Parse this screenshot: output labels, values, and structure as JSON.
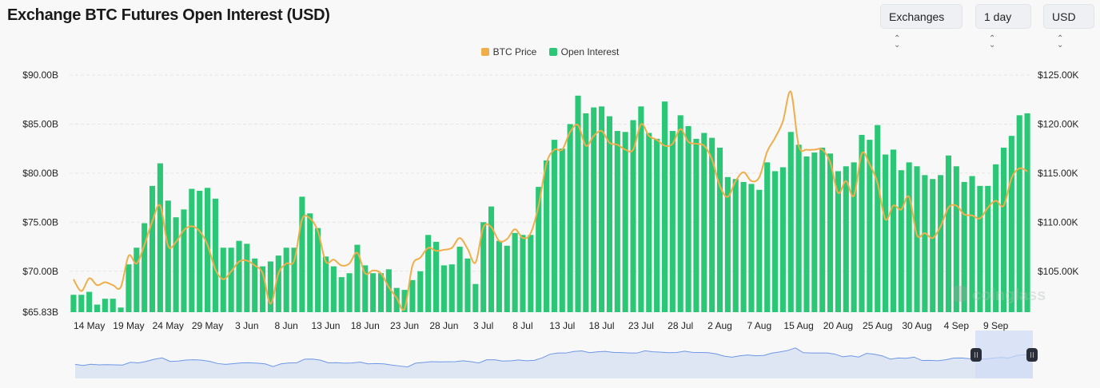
{
  "header": {
    "title": "Exchange BTC Futures Open Interest (USD)",
    "selectors": [
      {
        "label": "Exchanges",
        "icon": "chevron-updown-icon"
      },
      {
        "label": "1 day",
        "icon": "chevron-updown-icon"
      },
      {
        "label": "USD",
        "icon": "chevron-updown-icon"
      }
    ]
  },
  "watermark": "coinglass",
  "colors": {
    "open_interest": "#2cc776",
    "btc_price": "#f0ae4a",
    "navigator_line": "#6d97e8",
    "navigator_fill": "#dfe6f3",
    "navigator_selection": "#cfdcf6"
  },
  "chart_data": {
    "type": "bar",
    "title": "Exchange BTC Futures Open Interest (USD)",
    "legend": {
      "position": "top-center",
      "entries": [
        "BTC Price",
        "Open Interest"
      ]
    },
    "y_left": {
      "ticks": [
        "$90.00B",
        "$85.00B",
        "$80.00B",
        "$75.00B",
        "$70.00B",
        "$65.83B"
      ],
      "tick_values": [
        90,
        85,
        80,
        75,
        70,
        65.83
      ],
      "range": [
        65.83,
        90
      ],
      "unit": "USD billions"
    },
    "y_right": {
      "ticks": [
        "$125.00K",
        "$120.00K",
        "$115.00K",
        "$110.00K",
        "$105.00K"
      ],
      "tick_values": [
        125,
        120,
        115,
        110,
        105
      ],
      "range": [
        100.85,
        125
      ],
      "unit": "USD thousands"
    },
    "grid": true,
    "x_ticks": [
      {
        "label": "14 May",
        "index": 2
      },
      {
        "label": "19 May",
        "index": 7
      },
      {
        "label": "24 May",
        "index": 12
      },
      {
        "label": "29 May",
        "index": 17
      },
      {
        "label": "3 Jun",
        "index": 22
      },
      {
        "label": "8 Jun",
        "index": 27
      },
      {
        "label": "13 Jun",
        "index": 32
      },
      {
        "label": "18 Jun",
        "index": 37
      },
      {
        "label": "23 Jun",
        "index": 42
      },
      {
        "label": "28 Jun",
        "index": 47
      },
      {
        "label": "3 Jul",
        "index": 52
      },
      {
        "label": "8 Jul",
        "index": 57
      },
      {
        "label": "13 Jul",
        "index": 62
      },
      {
        "label": "18 Jul",
        "index": 67
      },
      {
        "label": "23 Jul",
        "index": 72
      },
      {
        "label": "28 Jul",
        "index": 77
      },
      {
        "label": "2 Aug",
        "index": 82
      },
      {
        "label": "7 Aug",
        "index": 87
      },
      {
        "label": "15 Aug",
        "index": 92
      },
      {
        "label": "20 Aug",
        "index": 97
      },
      {
        "label": "25 Aug",
        "index": 102
      },
      {
        "label": "30 Aug",
        "index": 107
      },
      {
        "label": "4 Sep",
        "index": 112
      },
      {
        "label": "9 Sep",
        "index": 117
      }
    ],
    "series": [
      {
        "name": "Open Interest",
        "type": "bar",
        "axis": "left",
        "values": [
          67.6,
          67.6,
          67.9,
          66.6,
          67.2,
          67.2,
          66.3,
          70.7,
          72.4,
          74.9,
          78.7,
          81.0,
          77.2,
          75.5,
          76.3,
          78.4,
          78.2,
          78.5,
          77.4,
          72.4,
          72.4,
          73.1,
          72.8,
          71.3,
          70.5,
          71.0,
          71.6,
          72.4,
          72.4,
          77.6,
          75.9,
          74.4,
          71.5,
          70.5,
          69.4,
          69.8,
          72.7,
          70.6,
          69.8,
          69.8,
          70.2,
          68.3,
          68.1,
          69.1,
          70.0,
          73.7,
          73.0,
          70.6,
          70.7,
          72.5,
          71.3,
          68.7,
          75.0,
          76.6,
          73.1,
          72.6,
          73.9,
          73.7,
          73.7,
          78.6,
          81.3,
          83.4,
          82.5,
          85.0,
          87.9,
          86.1,
          86.7,
          86.8,
          85.8,
          84.3,
          84.2,
          85.4,
          86.8,
          84.1,
          83.5,
          87.3,
          84.3,
          85.9,
          84.8,
          83.5,
          84.1,
          83.6,
          82.6,
          79.6,
          79.4,
          79.1,
          78.9,
          78.3,
          81.1,
          80.2,
          80.6,
          84.2,
          82.9,
          81.7,
          82.1,
          82.6,
          82.0,
          80.2,
          80.7,
          81.1,
          83.9,
          83.4,
          84.9,
          81.9,
          82.4,
          80.3,
          81.1,
          80.7,
          79.8,
          79.4,
          79.8,
          81.8,
          80.7,
          79.1,
          79.7,
          78.7,
          78.7,
          80.9,
          82.6,
          83.8,
          85.9,
          86.1
        ]
      },
      {
        "name": "BTC Price",
        "type": "line",
        "axis": "right",
        "values": [
          104.2,
          103.0,
          104.3,
          103.6,
          103.9,
          103.6,
          103.4,
          106.6,
          105.8,
          107.7,
          110.1,
          111.7,
          107.6,
          108.0,
          109.2,
          109.6,
          109.1,
          107.7,
          105.2,
          104.2,
          105.0,
          106.0,
          106.1,
          105.6,
          104.8,
          101.7,
          104.8,
          105.8,
          106.1,
          110.3,
          110.4,
          109.1,
          106.0,
          106.2,
          105.6,
          105.8,
          106.9,
          104.8,
          105.1,
          104.8,
          103.4,
          102.3,
          101.2,
          105.6,
          106.4,
          107.4,
          107.1,
          107.2,
          107.4,
          108.4,
          107.3,
          105.9,
          109.5,
          109.5,
          108.1,
          108.3,
          109.3,
          108.4,
          108.9,
          111.7,
          116.0,
          117.4,
          117.4,
          119.2,
          119.9,
          117.8,
          118.8,
          119.3,
          118.1,
          117.9,
          117.4,
          117.4,
          120.0,
          118.8,
          118.4,
          117.8,
          118.0,
          119.5,
          118.2,
          118.0,
          117.8,
          116.4,
          113.7,
          112.6,
          114.2,
          115.1,
          114.2,
          114.6,
          117.2,
          118.6,
          120.3,
          123.3,
          117.8,
          117.4,
          117.4,
          117.4,
          116.1,
          113.0,
          114.2,
          112.7,
          117.0,
          115.9,
          114.0,
          110.3,
          111.7,
          111.3,
          112.6,
          108.7,
          108.9,
          108.4,
          109.6,
          111.5,
          111.7,
          110.8,
          110.7,
          110.4,
          111.5,
          112.2,
          111.7,
          114.5,
          115.5,
          115.2
        ]
      }
    ]
  }
}
